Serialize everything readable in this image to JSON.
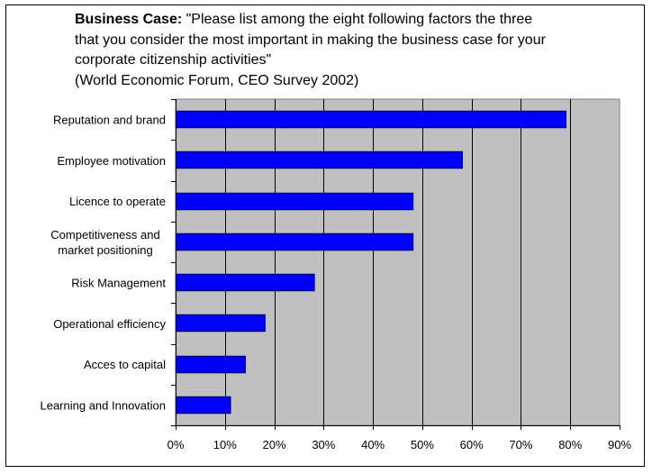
{
  "chart_data": {
    "type": "bar",
    "orientation": "horizontal",
    "title_bold": "Business Case:",
    "title_lines": [
      "\"Please list among the eight following factors the three",
      "that you consider the most important in making the business case for your",
      "corporate citizenship activities\"",
      "(World Economic Forum, CEO Survey 2002)"
    ],
    "categories": [
      [
        "Reputation and brand"
      ],
      [
        "Employee motivation"
      ],
      [
        "Licence to operate"
      ],
      [
        "Competitiveness and",
        "market positioning"
      ],
      [
        "Risk Management"
      ],
      [
        "Operational efficiency"
      ],
      [
        "Acces to capital"
      ],
      [
        "Learning and Innovation"
      ]
    ],
    "values": [
      79,
      58,
      48,
      48,
      28,
      18,
      14,
      11
    ],
    "xlim": [
      0,
      90
    ],
    "xticks": [
      0,
      10,
      20,
      30,
      40,
      50,
      60,
      70,
      80,
      90
    ],
    "xtick_labels": [
      "0%",
      "10%",
      "20%",
      "30%",
      "40%",
      "50%",
      "60%",
      "70%",
      "80%",
      "90%"
    ],
    "xlabel": "",
    "ylabel": "",
    "grid": true,
    "legend": "none",
    "colors": {
      "bar": "#0000ff",
      "bar_edge": "#000080",
      "plot_background": "#c0c0c0",
      "grid": "#000000"
    }
  }
}
